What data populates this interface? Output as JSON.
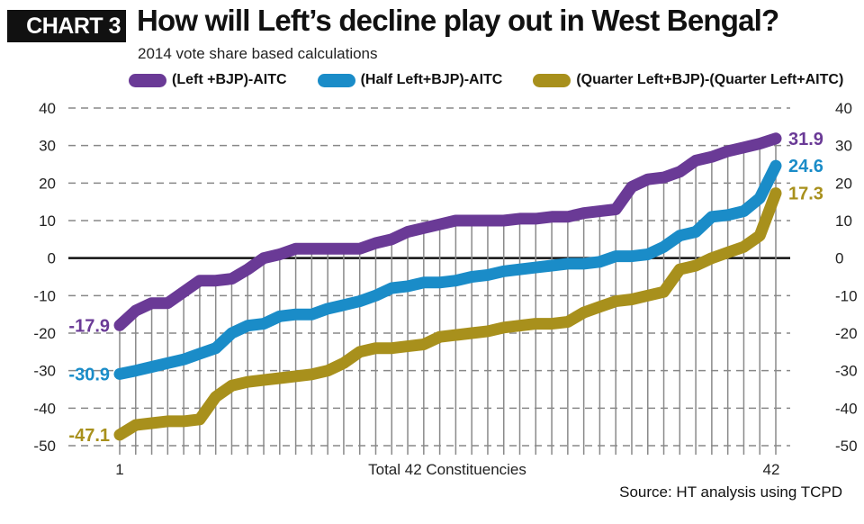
{
  "header": {
    "badge": "CHART 3",
    "title": "How will Left’s decline play out in West Bengal?",
    "subtitle": "2014 vote share based calculations"
  },
  "legend": [
    {
      "label": "(Left +BJP)-AITC",
      "color": "#6a3a96"
    },
    {
      "label": "(Half Left+BJP)-AITC",
      "color": "#1a8cc8"
    },
    {
      "label": "(Quarter Left+BJP)-(Quarter Left+AITC)",
      "color": "#a8901c"
    }
  ],
  "source": "Source: HT analysis using TCPD",
  "chart_data": {
    "type": "line",
    "title": "How will Left’s decline play out in West Bengal?",
    "subtitle": "2014 vote share based calculations",
    "xlabel": "Total 42 Constituencies",
    "ylabel": "",
    "x_tick_labels": [
      "1",
      "42"
    ],
    "x_range": [
      1,
      42
    ],
    "ylim": [
      -50,
      40
    ],
    "y_ticks": [
      40,
      30,
      20,
      10,
      0,
      -10,
      -20,
      -30,
      -40,
      -50
    ],
    "grid": true,
    "legend_position": "top",
    "series": [
      {
        "name": "(Left +BJP)-AITC",
        "color": "#6a3a96",
        "start_label": "-17.9",
        "end_label": "31.9",
        "values": [
          -17.9,
          -14,
          -12,
          -12,
          -9,
          -6,
          -6,
          -5.5,
          -3,
          0,
          1,
          2.5,
          2.5,
          2.5,
          2.5,
          2.5,
          4,
          5,
          7,
          8,
          9,
          10,
          10,
          10,
          10,
          10.5,
          10.5,
          11,
          11,
          12,
          12.5,
          13,
          19,
          21,
          21.5,
          23,
          26,
          27,
          28.5,
          29.5,
          30.5,
          31.9
        ]
      },
      {
        "name": "(Half Left+BJP)-AITC",
        "color": "#1a8cc8",
        "start_label": "-30.9",
        "end_label": "24.6",
        "values": [
          -30.9,
          -30,
          -29,
          -28,
          -27,
          -25.5,
          -24,
          -20,
          -18,
          -17.5,
          -15.5,
          -15,
          -15,
          -13.5,
          -12.5,
          -11.5,
          -10,
          -8,
          -7.5,
          -6.5,
          -6.5,
          -6,
          -5,
          -4.5,
          -3.5,
          -3,
          -2.5,
          -2,
          -1.5,
          -1.5,
          -1,
          0.5,
          0.5,
          1,
          3,
          6,
          7,
          11,
          11.5,
          12.5,
          16,
          24.6
        ]
      },
      {
        "name": "(Quarter Left+BJP)-(Quarter Left+AITC)",
        "color": "#a8901c",
        "start_label": "-47.1",
        "end_label": "17.3",
        "values": [
          -47.1,
          -44.5,
          -44,
          -43.5,
          -43.5,
          -43,
          -37,
          -34,
          -33,
          -32.5,
          -32,
          -31.5,
          -31,
          -30,
          -28,
          -25,
          -24,
          -24,
          -23.5,
          -23,
          -21,
          -20.5,
          -20,
          -19.5,
          -18.5,
          -18,
          -17.5,
          -17.5,
          -17,
          -14.5,
          -13,
          -11.5,
          -11,
          -10,
          -9,
          -3,
          -2,
          0,
          1.5,
          3,
          6,
          17.3
        ]
      }
    ]
  }
}
